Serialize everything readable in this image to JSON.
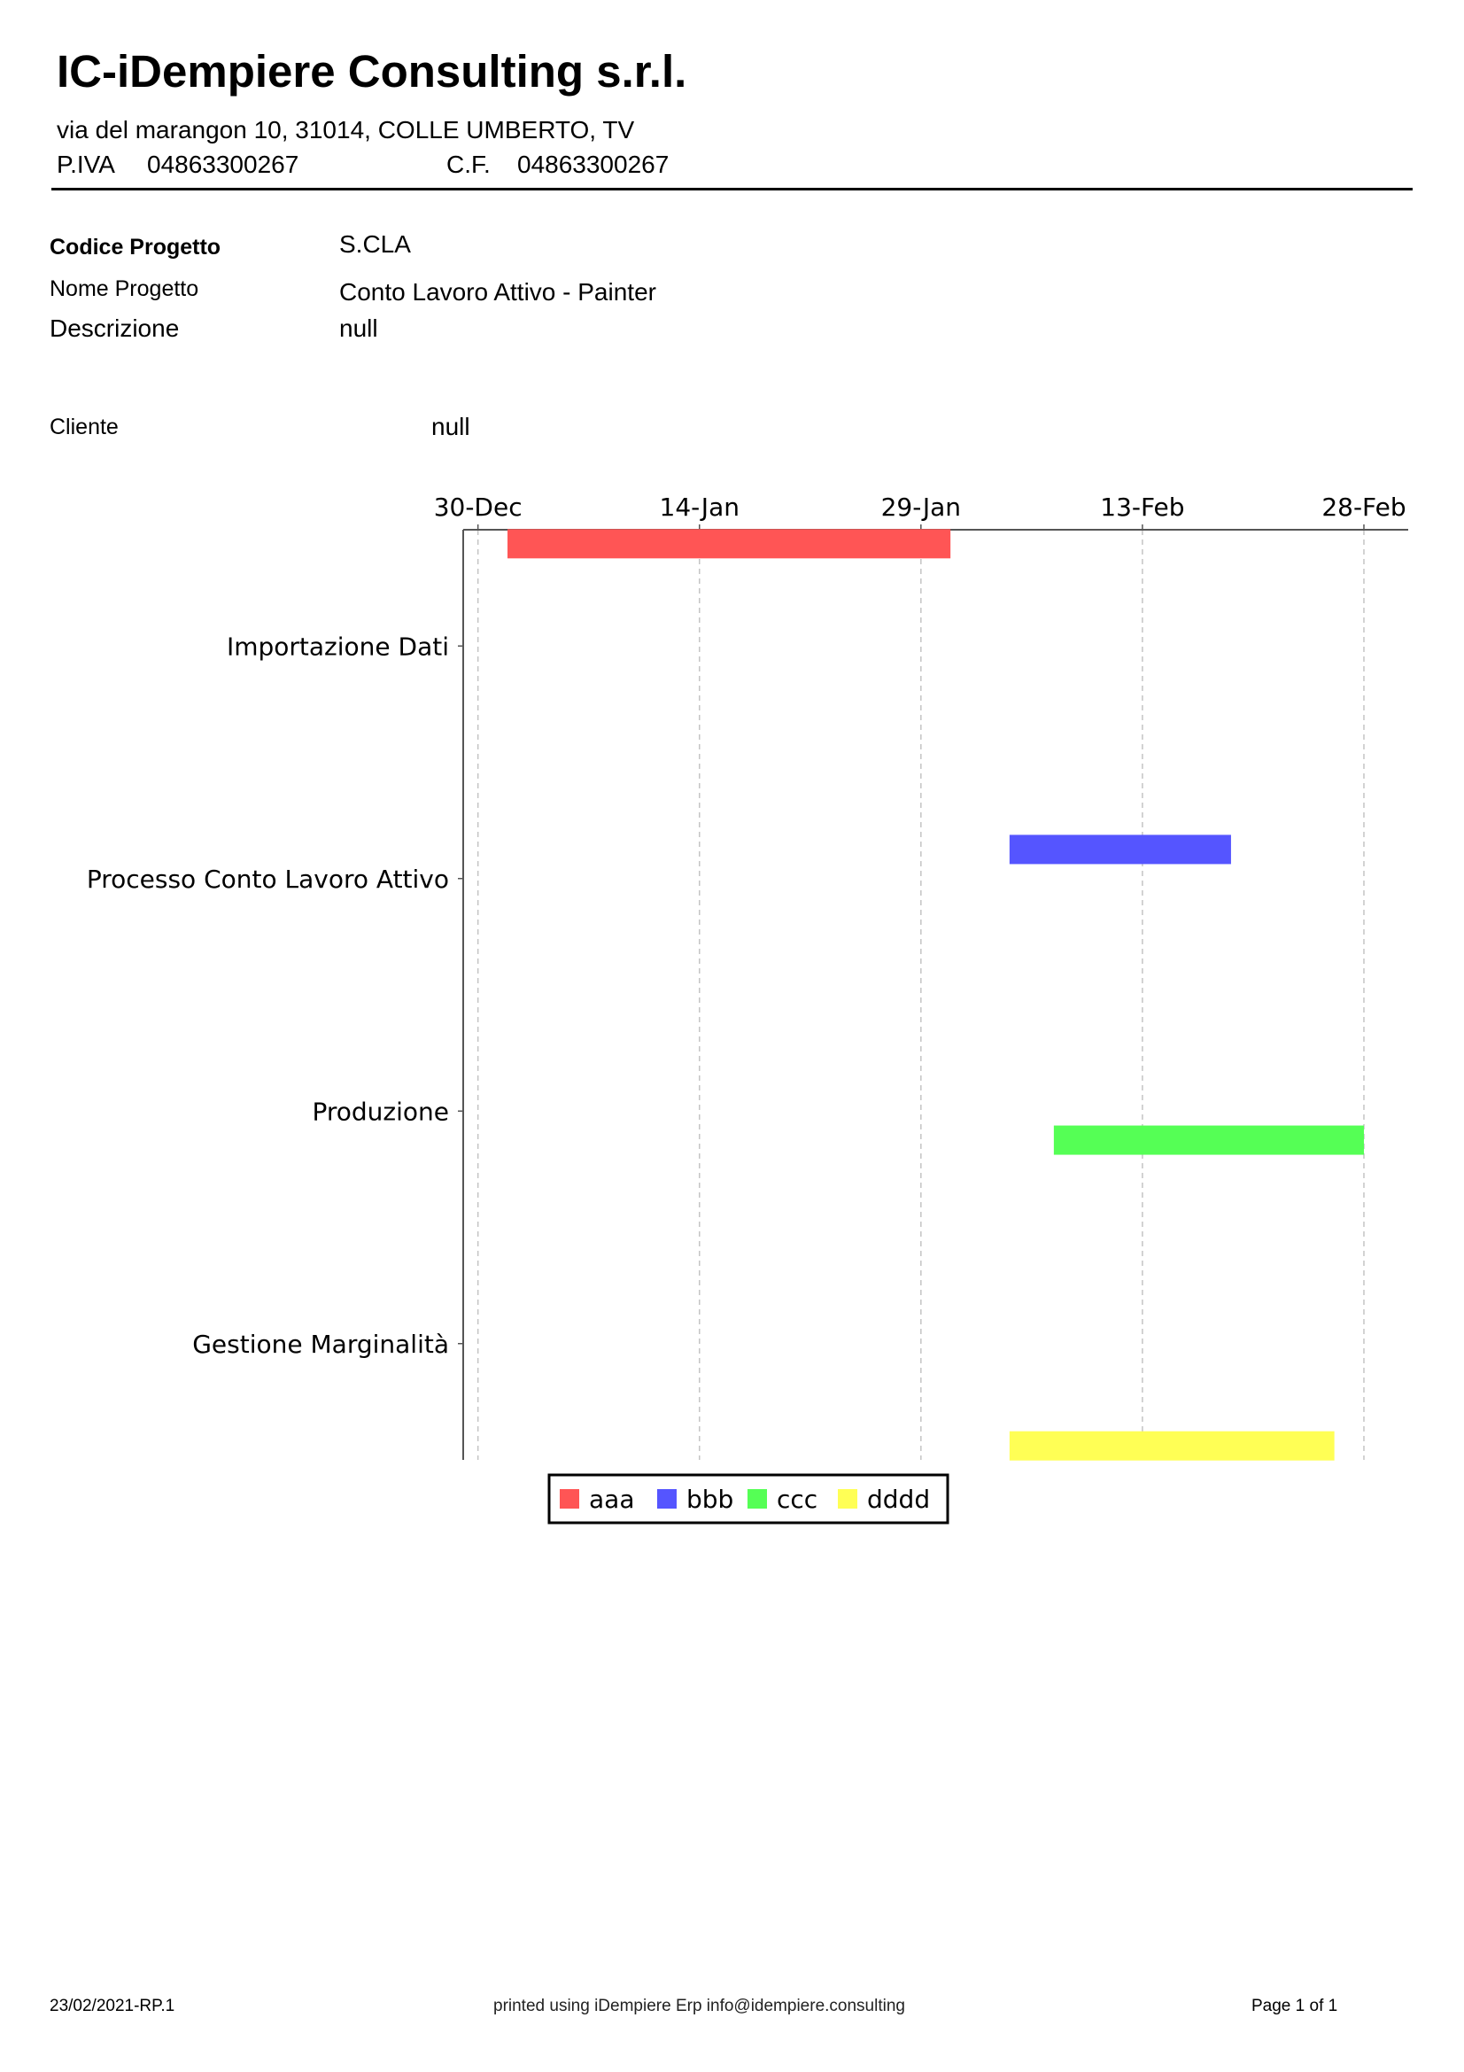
{
  "company": {
    "name": "IC-iDempiere Consulting s.r.l.",
    "address": "via del marangon 10, 31014, COLLE UMBERTO, TV",
    "vat_label": "P.IVA",
    "vat_value": "04863300267",
    "cf_label": "C.F.",
    "cf_value": "04863300267"
  },
  "project": {
    "code_label": "Codice Progetto",
    "code_value": "S.CLA",
    "name_label": "Nome Progetto",
    "name_value": "Conto Lavoro Attivo - Painter",
    "description_label": "Descrizione",
    "description_value": "null",
    "client_label": "Cliente",
    "client_value": "null"
  },
  "chart_data": {
    "type": "gantt",
    "x_type": "date",
    "x_ticks": [
      "30-Dec",
      "14-Jan",
      "29-Jan",
      "13-Feb",
      "28-Feb"
    ],
    "tick_dates": [
      "2020-12-30",
      "2021-01-14",
      "2021-01-29",
      "2021-02-13",
      "2021-02-28"
    ],
    "xlim": [
      "2020-12-29",
      "2021-03-03"
    ],
    "grid": "vertical dashed",
    "legend_position": "bottom",
    "categories": [
      "Importazione Dati",
      "Processo Conto Lavoro Attivo",
      "Produzione",
      "Gestione Marginalità"
    ],
    "series": [
      {
        "name": "aaa",
        "color": "#ff5555",
        "tasks": [
          {
            "category": "Importazione Dati",
            "start": "2021-01-01",
            "end": "2021-01-31"
          }
        ]
      },
      {
        "name": "bbb",
        "color": "#5555ff",
        "tasks": [
          {
            "category": "Processo Conto Lavoro Attivo",
            "start": "2021-02-04",
            "end": "2021-02-19"
          }
        ]
      },
      {
        "name": "ccc",
        "color": "#55ff55",
        "tasks": [
          {
            "category": "Produzione",
            "start": "2021-02-07",
            "end": "2021-02-28"
          }
        ]
      },
      {
        "name": "dddd",
        "color": "#ffff55",
        "tasks": [
          {
            "category": "Gestione Marginalità",
            "start": "2021-02-04",
            "end": "2021-02-26"
          }
        ]
      }
    ]
  },
  "footer": {
    "left": "23/02/2021-RP.1",
    "center": "printed using iDempiere Erp info@idempiere.consulting",
    "right": "Page 1 of 1"
  }
}
